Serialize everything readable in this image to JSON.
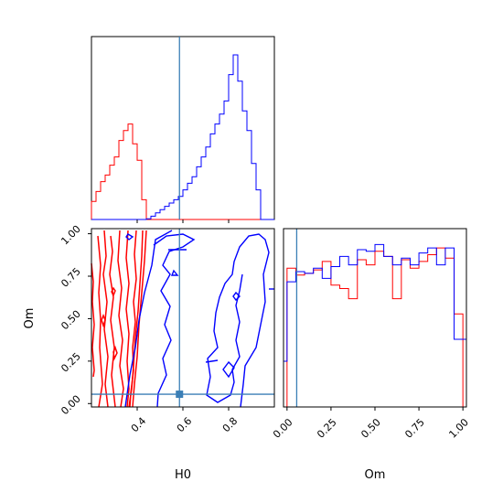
{
  "chart_data": {
    "type": "corner",
    "truth": {
      "H0": 0.585,
      "Om": 0.055
    },
    "truth_color": "#3b7fb6",
    "colors": {
      "series_a": "#ff0000",
      "series_b": "#0000ff"
    },
    "panels": {
      "h0_hist": {
        "type": "step-histogram",
        "xlim": [
          0.2,
          1.0
        ],
        "edges": [
          0.2,
          0.22,
          0.24,
          0.26,
          0.28,
          0.3,
          0.32,
          0.34,
          0.36,
          0.38,
          0.4,
          0.42,
          0.44,
          0.46,
          0.48,
          0.5,
          0.52,
          0.54,
          0.56,
          0.58,
          0.6,
          0.62,
          0.64,
          0.66,
          0.68,
          0.7,
          0.72,
          0.74,
          0.76,
          0.78,
          0.8,
          0.82,
          0.84,
          0.86,
          0.88,
          0.9,
          0.92,
          0.94,
          0.96,
          0.98,
          1.0
        ],
        "series": [
          {
            "values": [
              0.11,
              0.17,
              0.23,
              0.27,
              0.33,
              0.38,
              0.48,
              0.54,
              0.58,
              0.46,
              0.36,
              0.12,
              0,
              0,
              0,
              0,
              0,
              0,
              0,
              0,
              0,
              0,
              0,
              0,
              0,
              0,
              0,
              0,
              0,
              0,
              0,
              0,
              0,
              0,
              0,
              0,
              0,
              0,
              0,
              0
            ]
          },
          {
            "values": [
              0,
              0,
              0,
              0,
              0,
              0,
              0,
              0,
              0,
              0,
              0,
              0,
              0.004,
              0.02,
              0.04,
              0.06,
              0.08,
              0.1,
              0.12,
              0.14,
              0.18,
              0.22,
              0.26,
              0.32,
              0.38,
              0.44,
              0.52,
              0.58,
              0.64,
              0.72,
              0.88,
              1.0,
              0.84,
              0.66,
              0.54,
              0.34,
              0.18,
              0,
              0,
              0
            ]
          }
        ]
      },
      "om_hist": {
        "type": "step-histogram",
        "xlim": [
          -0.02,
          1.02
        ],
        "edges": [
          -0.02,
          0.0,
          0.05,
          0.1,
          0.15,
          0.2,
          0.25,
          0.3,
          0.35,
          0.4,
          0.45,
          0.5,
          0.55,
          0.6,
          0.65,
          0.7,
          0.75,
          0.8,
          0.85,
          0.9,
          0.95,
          1.0,
          1.02
        ],
        "series": [
          {
            "values": [
              0.0,
              0.82,
              0.78,
              0.79,
              0.81,
              0.86,
              0.72,
              0.7,
              0.64,
              0.87,
              0.84,
              0.92,
              0.89,
              0.64,
              0.87,
              0.82,
              0.86,
              0.9,
              0.94,
              0.88,
              0.55,
              0.0
            ]
          },
          {
            "values": [
              0.27,
              0.74,
              0.8,
              0.79,
              0.82,
              0.76,
              0.83,
              0.89,
              0.84,
              0.93,
              0.92,
              0.96,
              0.89,
              0.84,
              0.88,
              0.84,
              0.91,
              0.94,
              0.84,
              0.94,
              0.4,
              0.4
            ]
          }
        ]
      },
      "contour": {
        "type": "contour",
        "xlim": [
          0.2,
          1.0
        ],
        "ylim": [
          -0.02,
          1.03
        ],
        "xticks": [
          0.4,
          0.6,
          0.8
        ],
        "yticks": [
          0.0,
          0.25,
          0.5,
          0.75,
          1.0
        ]
      }
    },
    "contour_tick_labels": [
      "0.4",
      "0.6",
      "0.8"
    ],
    "om_tick_labels": [
      "0.00",
      "0.25",
      "0.50",
      "0.75",
      "1.00"
    ],
    "xlabel_bottom_left": "H0",
    "xlabel_bottom_right": "Om",
    "ylabel_left": "Om"
  }
}
